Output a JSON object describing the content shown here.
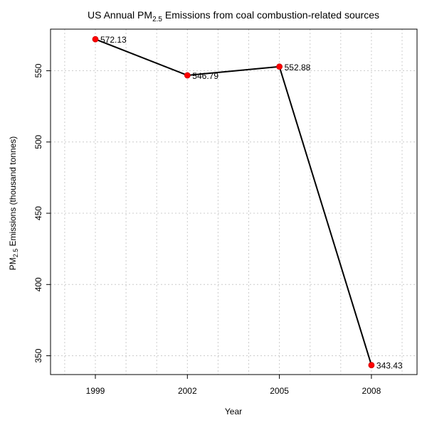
{
  "chart_data": {
    "type": "line",
    "title_main": "US Annual PM",
    "title_sub": "2.5",
    "title_rest": " Emissions from coal combustion-related sources",
    "xlabel": "Year",
    "ylabel_main": "PM",
    "ylabel_sub": "2.5",
    "ylabel_rest": " Emissions (thousand tonnes)",
    "categories": [
      "1999",
      "2002",
      "2005",
      "2008"
    ],
    "values": [
      572.13,
      546.79,
      552.88,
      343.43
    ],
    "value_labels": [
      "572.13",
      "546.79",
      "552.88",
      "343.43"
    ],
    "yticks": [
      350,
      400,
      450,
      500,
      550
    ],
    "ylim": [
      336.8,
      579.2
    ],
    "grid": true,
    "line_color": "#000000",
    "point_color": "#ff0000",
    "grid_color": "#cccccc"
  }
}
